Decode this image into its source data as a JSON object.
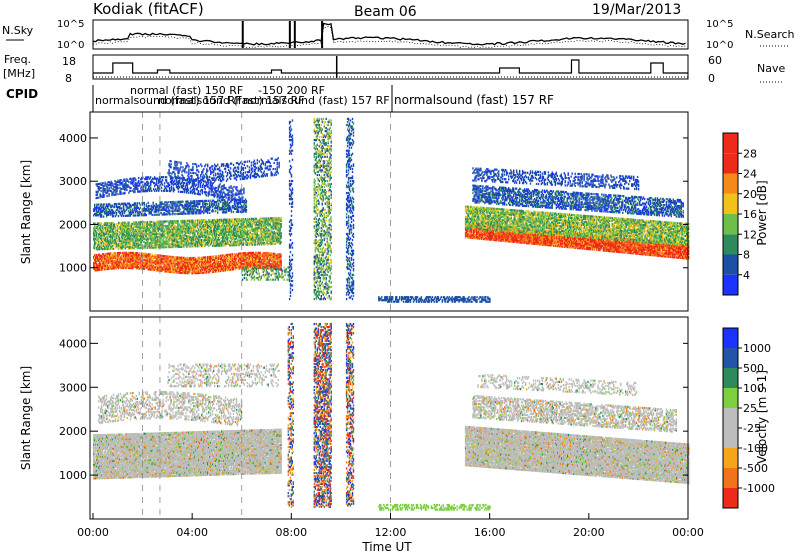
{
  "header": {
    "station": "Kodiak (fitACF)",
    "beam": "Beam 06",
    "date": "19/Mar/2013"
  },
  "strips": {
    "noise": {
      "left_label": "N.Sky",
      "right_label": "N.Search",
      "left_ticks": [
        "10^5",
        "10^0"
      ],
      "right_ticks": [
        "10^5",
        "10^0"
      ]
    },
    "frequency": {
      "left_label": "Freq.",
      "left_unit": "[MHz]",
      "right_label": "Nave",
      "left_ticks": [
        "18",
        "8"
      ],
      "right_ticks": [
        "60",
        "0"
      ]
    },
    "cpid": {
      "label": "CPID",
      "segments": [
        "normalsound (fast) 157 RF",
        "normalsound (fast) 157 RF",
        "normal (fast) 150 RF",
        "normalsound (fast) 157 RF",
        "-150 200 RF",
        "normalsound (fast)  157 RF"
      ]
    }
  },
  "xaxis": {
    "label": "Time UT",
    "ticks": [
      "00:00",
      "04:00",
      "08:00",
      "12:00",
      "16:00",
      "20:00",
      "00:00"
    ]
  },
  "panels": {
    "power": {
      "ylabel": "Slant Range [km]",
      "yticks": [
        "1000",
        "2000",
        "3000",
        "4000"
      ]
    },
    "velocity": {
      "ylabel": "Slant Range [km]",
      "yticks": [
        "1000",
        "2000",
        "3000",
        "4000"
      ]
    }
  },
  "colorbars": {
    "power": {
      "label": "Power [dB]",
      "ticks": [
        "4",
        "8",
        "12",
        "16",
        "20",
        "24",
        "28"
      ],
      "colors": [
        "#1a33ff",
        "#1c4fa6",
        "#2e8a5c",
        "#6cc04a",
        "#f2c21a",
        "#f58a1a",
        "#ee2a1a"
      ]
    },
    "velocity": {
      "label": "Velocity [m s-1]",
      "ticks": [
        "1000",
        "500",
        "100",
        "25",
        "-25",
        "-100",
        "-500",
        "-1000"
      ],
      "colors": [
        "#1a33ff",
        "#2255a8",
        "#2e8a5c",
        "#7ccf3e",
        "#bdbdbd",
        "#f5a51a",
        "#f2741a",
        "#ee2a1a"
      ]
    }
  },
  "chart_data": [
    {
      "type": "heatmap",
      "title": "Power",
      "xlabel": "Time UT",
      "ylabel": "Slant Range [km]",
      "x_range": [
        "00:00",
        "24:00"
      ],
      "ylim": [
        0,
        4600
      ],
      "colorbar_label": "Power [dB]",
      "colorbar_range": [
        0,
        32
      ],
      "bands": [
        {
          "t_start": 0.0,
          "t_end": 7.7,
          "range_center_km": [
            1000,
            1300
          ],
          "power_db": 24
        },
        {
          "t_start": 0.0,
          "t_end": 7.7,
          "range_km": [
            1300,
            2300
          ],
          "power_db": 14
        },
        {
          "t_start": 0.1,
          "t_end": 6.2,
          "range_km": [
            2200,
            3300
          ],
          "power_db": 6
        },
        {
          "t_start": 15.0,
          "t_end": 24.0,
          "range_center_km": [
            1900,
            1100
          ],
          "power_db": 26
        },
        {
          "t_start": 15.0,
          "t_end": 24.0,
          "range_km": [
            1400,
            2500
          ],
          "power_db": 14
        },
        {
          "t_start": 15.3,
          "t_end": 23.5,
          "range_km": [
            2500,
            3500
          ],
          "power_db": 6
        },
        {
          "t_start": 8.9,
          "t_end": 9.6,
          "range_km": [
            300,
            4500
          ],
          "power_db": 12
        },
        {
          "t_start": 10.2,
          "t_end": 10.5,
          "range_km": [
            300,
            4500
          ],
          "power_db": 6
        }
      ]
    },
    {
      "type": "heatmap",
      "title": "Velocity",
      "xlabel": "Time UT",
      "ylabel": "Slant Range [km]",
      "x_range": [
        "00:00",
        "24:00"
      ],
      "ylim": [
        0,
        4600
      ],
      "colorbar_label": "Velocity [m s-1]",
      "colorbar_range": [
        -1000,
        1000
      ],
      "bands": [
        {
          "t_start": 0.0,
          "t_end": 7.7,
          "range_km": [
            1000,
            2300
          ],
          "velocity_ms": 0
        },
        {
          "t_start": 15.0,
          "t_end": 24.0,
          "range_km": [
            1100,
            2400
          ],
          "velocity_ms": 0
        },
        {
          "t_start": 8.9,
          "t_end": 9.6,
          "range_km": [
            300,
            4500
          ],
          "velocity_ms": "mixed"
        },
        {
          "t_start": 10.2,
          "t_end": 10.5,
          "range_km": [
            300,
            4500
          ],
          "velocity_ms": "mixed"
        }
      ]
    }
  ]
}
